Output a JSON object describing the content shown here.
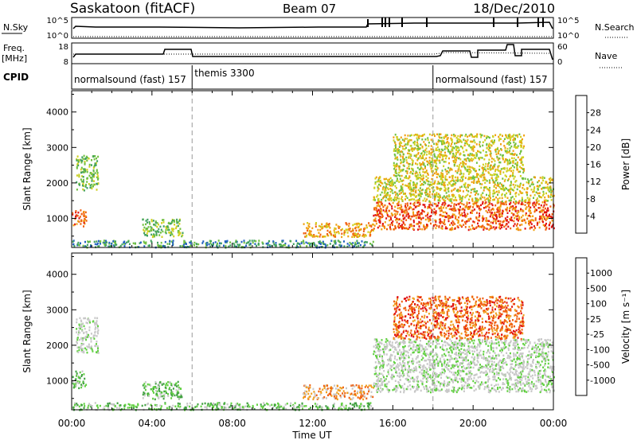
{
  "header": {
    "station": "Saskatoon (fitACF)",
    "beam": "Beam 07",
    "date": "18/Dec/2010"
  },
  "panels": {
    "nsky": {
      "label": "N.Sky",
      "ticks": [
        "10^5",
        "10^0"
      ],
      "right_label": "N.Search",
      "right_ticks": [
        "10^5",
        "10^0"
      ]
    },
    "freq": {
      "label_lines": [
        "Freq.",
        "[MHz]"
      ],
      "ticks": [
        "18",
        "8"
      ],
      "right_label": "Nave",
      "right_ticks": [
        "60",
        "0"
      ]
    },
    "cpid": {
      "label": "CPID",
      "segments": [
        {
          "text": "normalsound (fast) 157",
          "start_hour": 0
        },
        {
          "text": "themis 3300",
          "start_hour": 6
        },
        {
          "text": "normalsound (fast) 157",
          "start_hour": 18
        }
      ]
    }
  },
  "chart_data": [
    {
      "type": "heatmap",
      "title": "",
      "ylabel": "Slant Range [km]",
      "xlabel": "Time UT",
      "xlim_hours": [
        0,
        24
      ],
      "ylim": [
        180,
        4600
      ],
      "yticks": [
        1000,
        2000,
        3000,
        4000
      ],
      "xticks": [
        "00:00",
        "04:00",
        "08:00",
        "12:00",
        "16:00",
        "20:00",
        "00:00"
      ],
      "colorbar": {
        "label": "Power [dB]",
        "ticks": [
          "28",
          "24",
          "20",
          "16",
          "12",
          "8",
          "4"
        ],
        "colors": [
          "#0020ff",
          "#2060c0",
          "#40a060",
          "#70c040",
          "#d0d020",
          "#f0a010",
          "#f06010",
          "#e01010"
        ]
      },
      "regions": [
        {
          "t0": 0.0,
          "t1": 0.7,
          "r0": 800,
          "r1": 1300,
          "level": 6
        },
        {
          "t0": 0.2,
          "t1": 1.3,
          "r0": 1800,
          "r1": 2800,
          "level": 3
        },
        {
          "t0": 3.5,
          "t1": 5.5,
          "r0": 500,
          "r1": 1000,
          "level": 3
        },
        {
          "t0": 0.0,
          "t1": 15.0,
          "r0": 200,
          "r1": 400,
          "level": 2
        },
        {
          "t0": 11.5,
          "t1": 15.0,
          "r0": 500,
          "r1": 900,
          "level": 5
        },
        {
          "t0": 15.0,
          "t1": 24.0,
          "r0": 700,
          "r1": 1500,
          "level": 6
        },
        {
          "t0": 15.0,
          "t1": 24.0,
          "r0": 1500,
          "r1": 2200,
          "level": 4
        },
        {
          "t0": 16.0,
          "t1": 22.5,
          "r0": 2200,
          "r1": 3400,
          "level": 4
        }
      ]
    },
    {
      "type": "heatmap",
      "title": "",
      "ylabel": "Slant Range [km]",
      "xlabel": "Time UT",
      "xlim_hours": [
        0,
        24
      ],
      "ylim": [
        180,
        4600
      ],
      "yticks": [
        1000,
        2000,
        3000,
        4000
      ],
      "xticks": [
        "00:00",
        "04:00",
        "08:00",
        "12:00",
        "16:00",
        "20:00",
        "00:00"
      ],
      "colorbar": {
        "label": "Velocity [m s⁻¹]",
        "ticks": [
          "1000",
          "500",
          "100",
          "25",
          "-25",
          "-100",
          "-500",
          "-1000"
        ],
        "colors": [
          "#2040c0",
          "#3080a0",
          "#40a040",
          "#60d040",
          "#c8c8c8",
          "#c8c8c8",
          "#f0a020",
          "#f06010",
          "#e01010"
        ]
      },
      "regions": [
        {
          "t0": 0.0,
          "t1": 0.7,
          "r0": 800,
          "r1": 1300,
          "level": 3
        },
        {
          "t0": 0.2,
          "t1": 1.3,
          "r0": 1800,
          "r1": 2800,
          "level": 4
        },
        {
          "t0": 3.5,
          "t1": 5.5,
          "r0": 500,
          "r1": 1000,
          "level": 3
        },
        {
          "t0": 0.0,
          "t1": 15.0,
          "r0": 200,
          "r1": 400,
          "level": 3
        },
        {
          "t0": 11.5,
          "t1": 15.0,
          "r0": 500,
          "r1": 900,
          "level": 6
        },
        {
          "t0": 15.0,
          "t1": 24.0,
          "r0": 700,
          "r1": 1500,
          "level": 4
        },
        {
          "t0": 15.0,
          "t1": 24.0,
          "r0": 1500,
          "r1": 2200,
          "level": 4
        },
        {
          "t0": 16.0,
          "t1": 22.5,
          "r0": 2200,
          "r1": 3400,
          "level": 7
        }
      ]
    }
  ]
}
